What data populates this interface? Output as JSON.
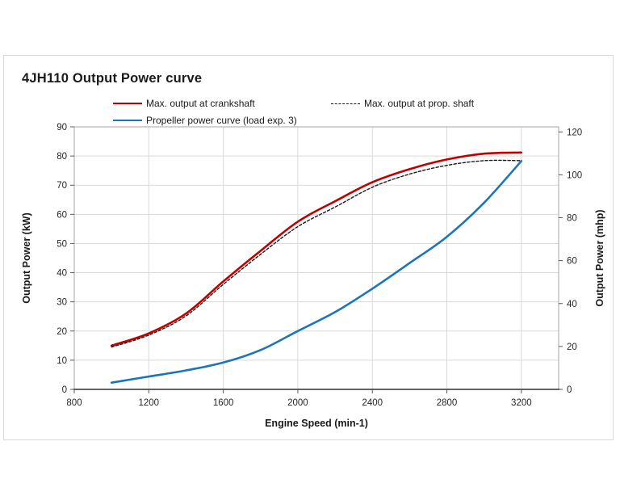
{
  "chart": {
    "title": "4JH110 Output Power curve",
    "legend": [
      {
        "label": "Max. output at crankshaft",
        "color": "#c00000",
        "line_style": "solid"
      },
      {
        "label": "Max. output at prop. shaft",
        "color": "#1a1a1a",
        "line_style": "dashed"
      },
      {
        "label": "Propeller power curve (load exp. 3)",
        "color": "#1b75bc",
        "line_style": "solid"
      }
    ]
  },
  "chart_data": {
    "type": "line",
    "title": "4JH110 Output Power curve",
    "xlabel": "Engine Speed (min-1)",
    "ylabel_left": "Output Power (kW)",
    "ylabel_right": "Output Power (mhp)",
    "xlim": [
      800,
      3400
    ],
    "ylim_left": [
      0,
      90
    ],
    "ylim_right": [
      0,
      120
    ],
    "x_ticks": [
      800,
      1200,
      1600,
      2000,
      2400,
      2800,
      3200
    ],
    "y_ticks_left": [
      0,
      10,
      20,
      30,
      40,
      50,
      60,
      70,
      80,
      90
    ],
    "y_ticks_right": [
      0,
      20,
      40,
      60,
      80,
      100,
      120
    ],
    "mhp_to_kw": 0.7355,
    "grid": true,
    "legend_position": "top",
    "x": [
      1000,
      1200,
      1400,
      1600,
      1800,
      2000,
      2200,
      2400,
      2600,
      2800,
      3000,
      3200
    ],
    "series": [
      {
        "name": "Max. output at crankshaft",
        "color": "#c00000",
        "line_style": "solid",
        "values_kw": [
          15.0,
          19.2,
          26.0,
          37.0,
          47.5,
          57.5,
          64.5,
          71.0,
          75.5,
          78.8,
          80.8,
          81.2
        ]
      },
      {
        "name": "Max. output at prop. shaft",
        "color": "#1a1a1a",
        "line_style": "dashed",
        "values_kw": [
          14.5,
          18.6,
          25.2,
          36.0,
          46.3,
          55.8,
          62.5,
          69.3,
          73.8,
          76.8,
          78.4,
          78.4
        ]
      },
      {
        "name": "Propeller power curve (load exp. 3)",
        "color": "#1b75bc",
        "line_style": "solid",
        "values_kw": [
          2.3,
          4.4,
          6.5,
          9.2,
          13.5,
          20.0,
          26.5,
          34.5,
          43.3,
          52.3,
          64.0,
          78.3
        ]
      }
    ]
  }
}
